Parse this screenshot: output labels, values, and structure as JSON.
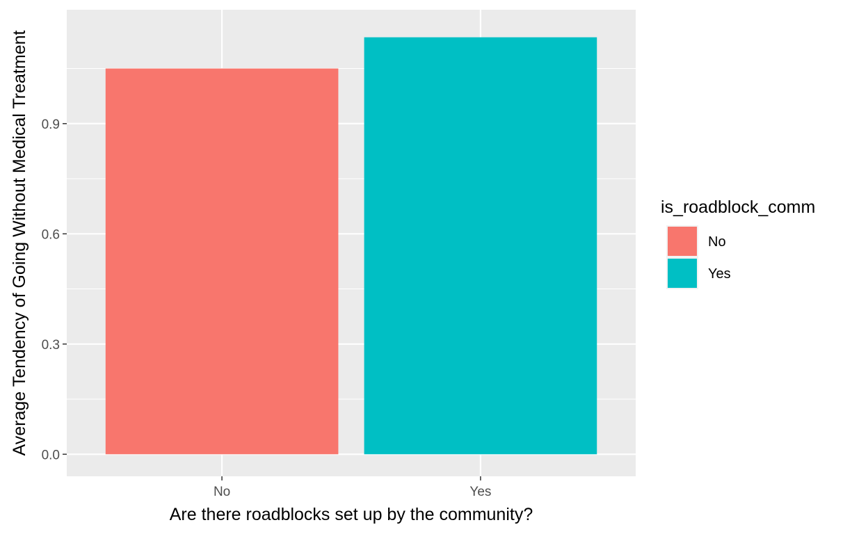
{
  "chart_data": {
    "type": "bar",
    "title": "",
    "xlabel": "Are there roadblocks set up by the community?",
    "ylabel": "Average Tendency of Going Without Medical Treatment",
    "categories": [
      "No",
      "Yes"
    ],
    "values": [
      1.05,
      1.135
    ],
    "colors": [
      "#F8766D",
      "#00BFC4"
    ],
    "ylim": [
      -0.06,
      1.21
    ],
    "yticks": [
      0.0,
      0.3,
      0.6,
      0.9
    ],
    "ytick_labels": [
      "0.0",
      "0.3",
      "0.6",
      "0.9"
    ],
    "yminor": [
      0.15,
      0.45,
      0.75,
      1.05
    ],
    "grid": true,
    "panel_background": "#EBEBEB",
    "legend": {
      "title": "is_roadblock_comm",
      "placement": "right",
      "entries": [
        {
          "label": "No",
          "color": "#F8766D"
        },
        {
          "label": "Yes",
          "color": "#00BFC4"
        }
      ]
    }
  }
}
